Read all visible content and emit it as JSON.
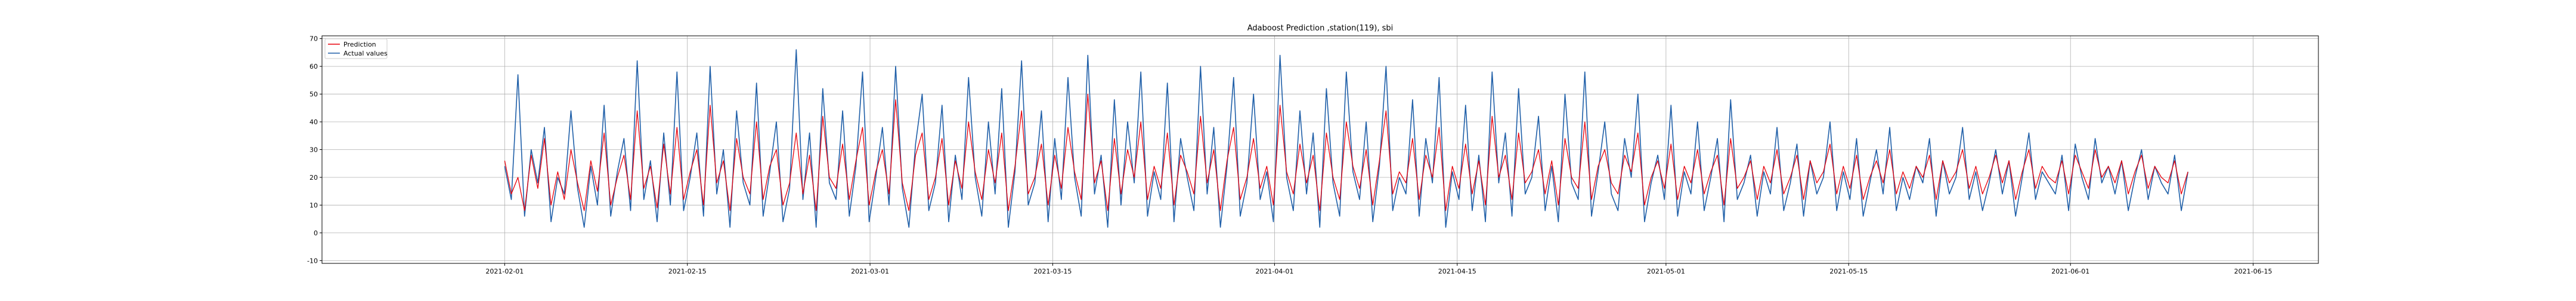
{
  "chart_data": {
    "type": "line",
    "title": "Adaboost Prediction ,station(119), sbi",
    "xlabel": "",
    "ylabel": "",
    "ylim": [
      -11,
      71
    ],
    "xlim": [
      "2021-01-18",
      "2021-06-20"
    ],
    "grid": true,
    "legend": "top-left",
    "x_ticks": [
      "2021-02-01",
      "2021-02-15",
      "2021-03-01",
      "2021-03-15",
      "2021-04-01",
      "2021-04-15",
      "2021-05-01",
      "2021-05-15",
      "2021-06-01",
      "2021-06-15"
    ],
    "y_ticks": [
      -10,
      0,
      10,
      20,
      30,
      40,
      50,
      60,
      70
    ],
    "date_range": [
      "2021-02-01",
      "2021-06-10"
    ],
    "series": [
      {
        "name": "Prediction",
        "color": "#e8000b",
        "values": [
          26,
          14,
          20,
          8,
          28,
          16,
          34,
          10,
          22,
          12,
          30,
          18,
          8,
          26,
          15,
          36,
          10,
          20,
          28,
          12,
          44,
          16,
          24,
          9,
          32,
          14,
          38,
          12,
          22,
          30,
          10,
          46,
          18,
          26,
          8,
          34,
          20,
          14,
          40,
          12,
          24,
          30,
          10,
          18,
          36,
          14,
          28,
          8,
          42,
          20,
          16,
          32,
          12,
          26,
          38,
          10,
          22,
          30,
          14,
          48,
          18,
          8,
          28,
          36,
          12,
          20,
          34,
          10,
          26,
          16,
          40,
          22,
          12,
          30,
          18,
          36,
          8,
          24,
          44,
          14,
          20,
          32,
          10,
          28,
          16,
          38,
          22,
          12,
          50,
          18,
          26,
          8,
          34,
          14,
          30,
          20,
          40,
          12,
          24,
          16,
          36,
          10,
          28,
          22,
          14,
          42,
          18,
          30,
          8,
          26,
          38,
          12,
          20,
          34,
          16,
          24,
          10,
          46,
          22,
          14,
          32,
          18,
          28,
          8,
          36,
          20,
          12,
          40,
          24,
          16,
          30,
          10,
          26,
          44,
          14,
          22,
          18,
          34,
          12,
          28,
          20,
          38,
          8,
          24,
          16,
          32,
          14,
          26,
          10,
          42,
          20,
          28,
          12,
          36,
          18,
          22,
          30,
          14,
          26,
          10,
          34,
          20,
          16,
          40,
          12,
          24,
          30,
          18,
          14,
          28,
          22,
          36,
          10,
          20,
          26,
          16,
          32,
          12,
          24,
          18,
          30,
          14,
          22,
          28,
          10,
          34,
          16,
          20,
          26,
          12,
          24,
          18,
          30,
          14,
          20,
          28,
          12,
          26,
          18,
          22,
          32,
          14,
          24,
          16,
          28,
          12,
          20,
          26,
          18,
          30,
          14,
          22,
          16,
          24,
          20,
          28,
          12,
          26,
          18,
          22,
          30,
          16,
          24,
          14,
          20,
          28,
          18,
          26,
          12,
          22,
          30,
          16,
          24,
          20,
          18,
          26,
          14,
          28,
          22,
          16,
          30,
          20,
          24,
          18,
          26,
          14,
          22,
          28,
          16,
          24,
          20,
          18,
          26,
          14,
          22
        ]
      },
      {
        "name": "Actual values",
        "color": "#1f5fa8",
        "values": [
          24,
          12,
          57,
          6,
          30,
          18,
          38,
          4,
          20,
          14,
          44,
          16,
          2,
          24,
          10,
          46,
          6,
          22,
          34,
          8,
          62,
          12,
          26,
          4,
          36,
          10,
          58,
          8,
          20,
          36,
          6,
          60,
          14,
          30,
          2,
          44,
          18,
          10,
          54,
          6,
          22,
          40,
          4,
          16,
          66,
          12,
          36,
          2,
          52,
          18,
          12,
          44,
          6,
          24,
          58,
          4,
          20,
          38,
          10,
          60,
          16,
          2,
          32,
          50,
          8,
          18,
          46,
          4,
          28,
          12,
          56,
          20,
          6,
          40,
          14,
          52,
          2,
          22,
          62,
          10,
          18,
          44,
          4,
          34,
          12,
          56,
          20,
          6,
          64,
          14,
          28,
          2,
          48,
          10,
          40,
          18,
          58,
          6,
          22,
          12,
          54,
          4,
          34,
          20,
          8,
          60,
          14,
          38,
          2,
          24,
          56,
          6,
          18,
          50,
          12,
          22,
          4,
          64,
          20,
          8,
          44,
          14,
          36,
          2,
          52,
          18,
          6,
          58,
          22,
          12,
          40,
          4,
          24,
          60,
          8,
          20,
          14,
          48,
          6,
          34,
          18,
          56,
          2,
          22,
          12,
          46,
          8,
          28,
          4,
          58,
          18,
          36,
          6,
          52,
          14,
          20,
          42,
          8,
          24,
          4,
          50,
          18,
          12,
          58,
          6,
          22,
          40,
          14,
          8,
          34,
          20,
          50,
          4,
          18,
          28,
          12,
          46,
          6,
          22,
          14,
          40,
          8,
          20,
          34,
          4,
          48,
          12,
          18,
          28,
          6,
          22,
          14,
          38,
          8,
          18,
          32,
          6,
          26,
          14,
          20,
          40,
          8,
          22,
          12,
          34,
          6,
          18,
          30,
          14,
          38,
          8,
          20,
          12,
          24,
          18,
          34,
          6,
          26,
          14,
          20,
          38,
          12,
          22,
          8,
          18,
          30,
          14,
          26,
          6,
          20,
          36,
          12,
          22,
          18,
          14,
          28,
          8,
          32,
          20,
          12,
          34,
          18,
          24,
          14,
          26,
          8,
          20,
          30,
          12,
          24,
          18,
          14,
          28,
          8,
          22
        ]
      }
    ]
  }
}
